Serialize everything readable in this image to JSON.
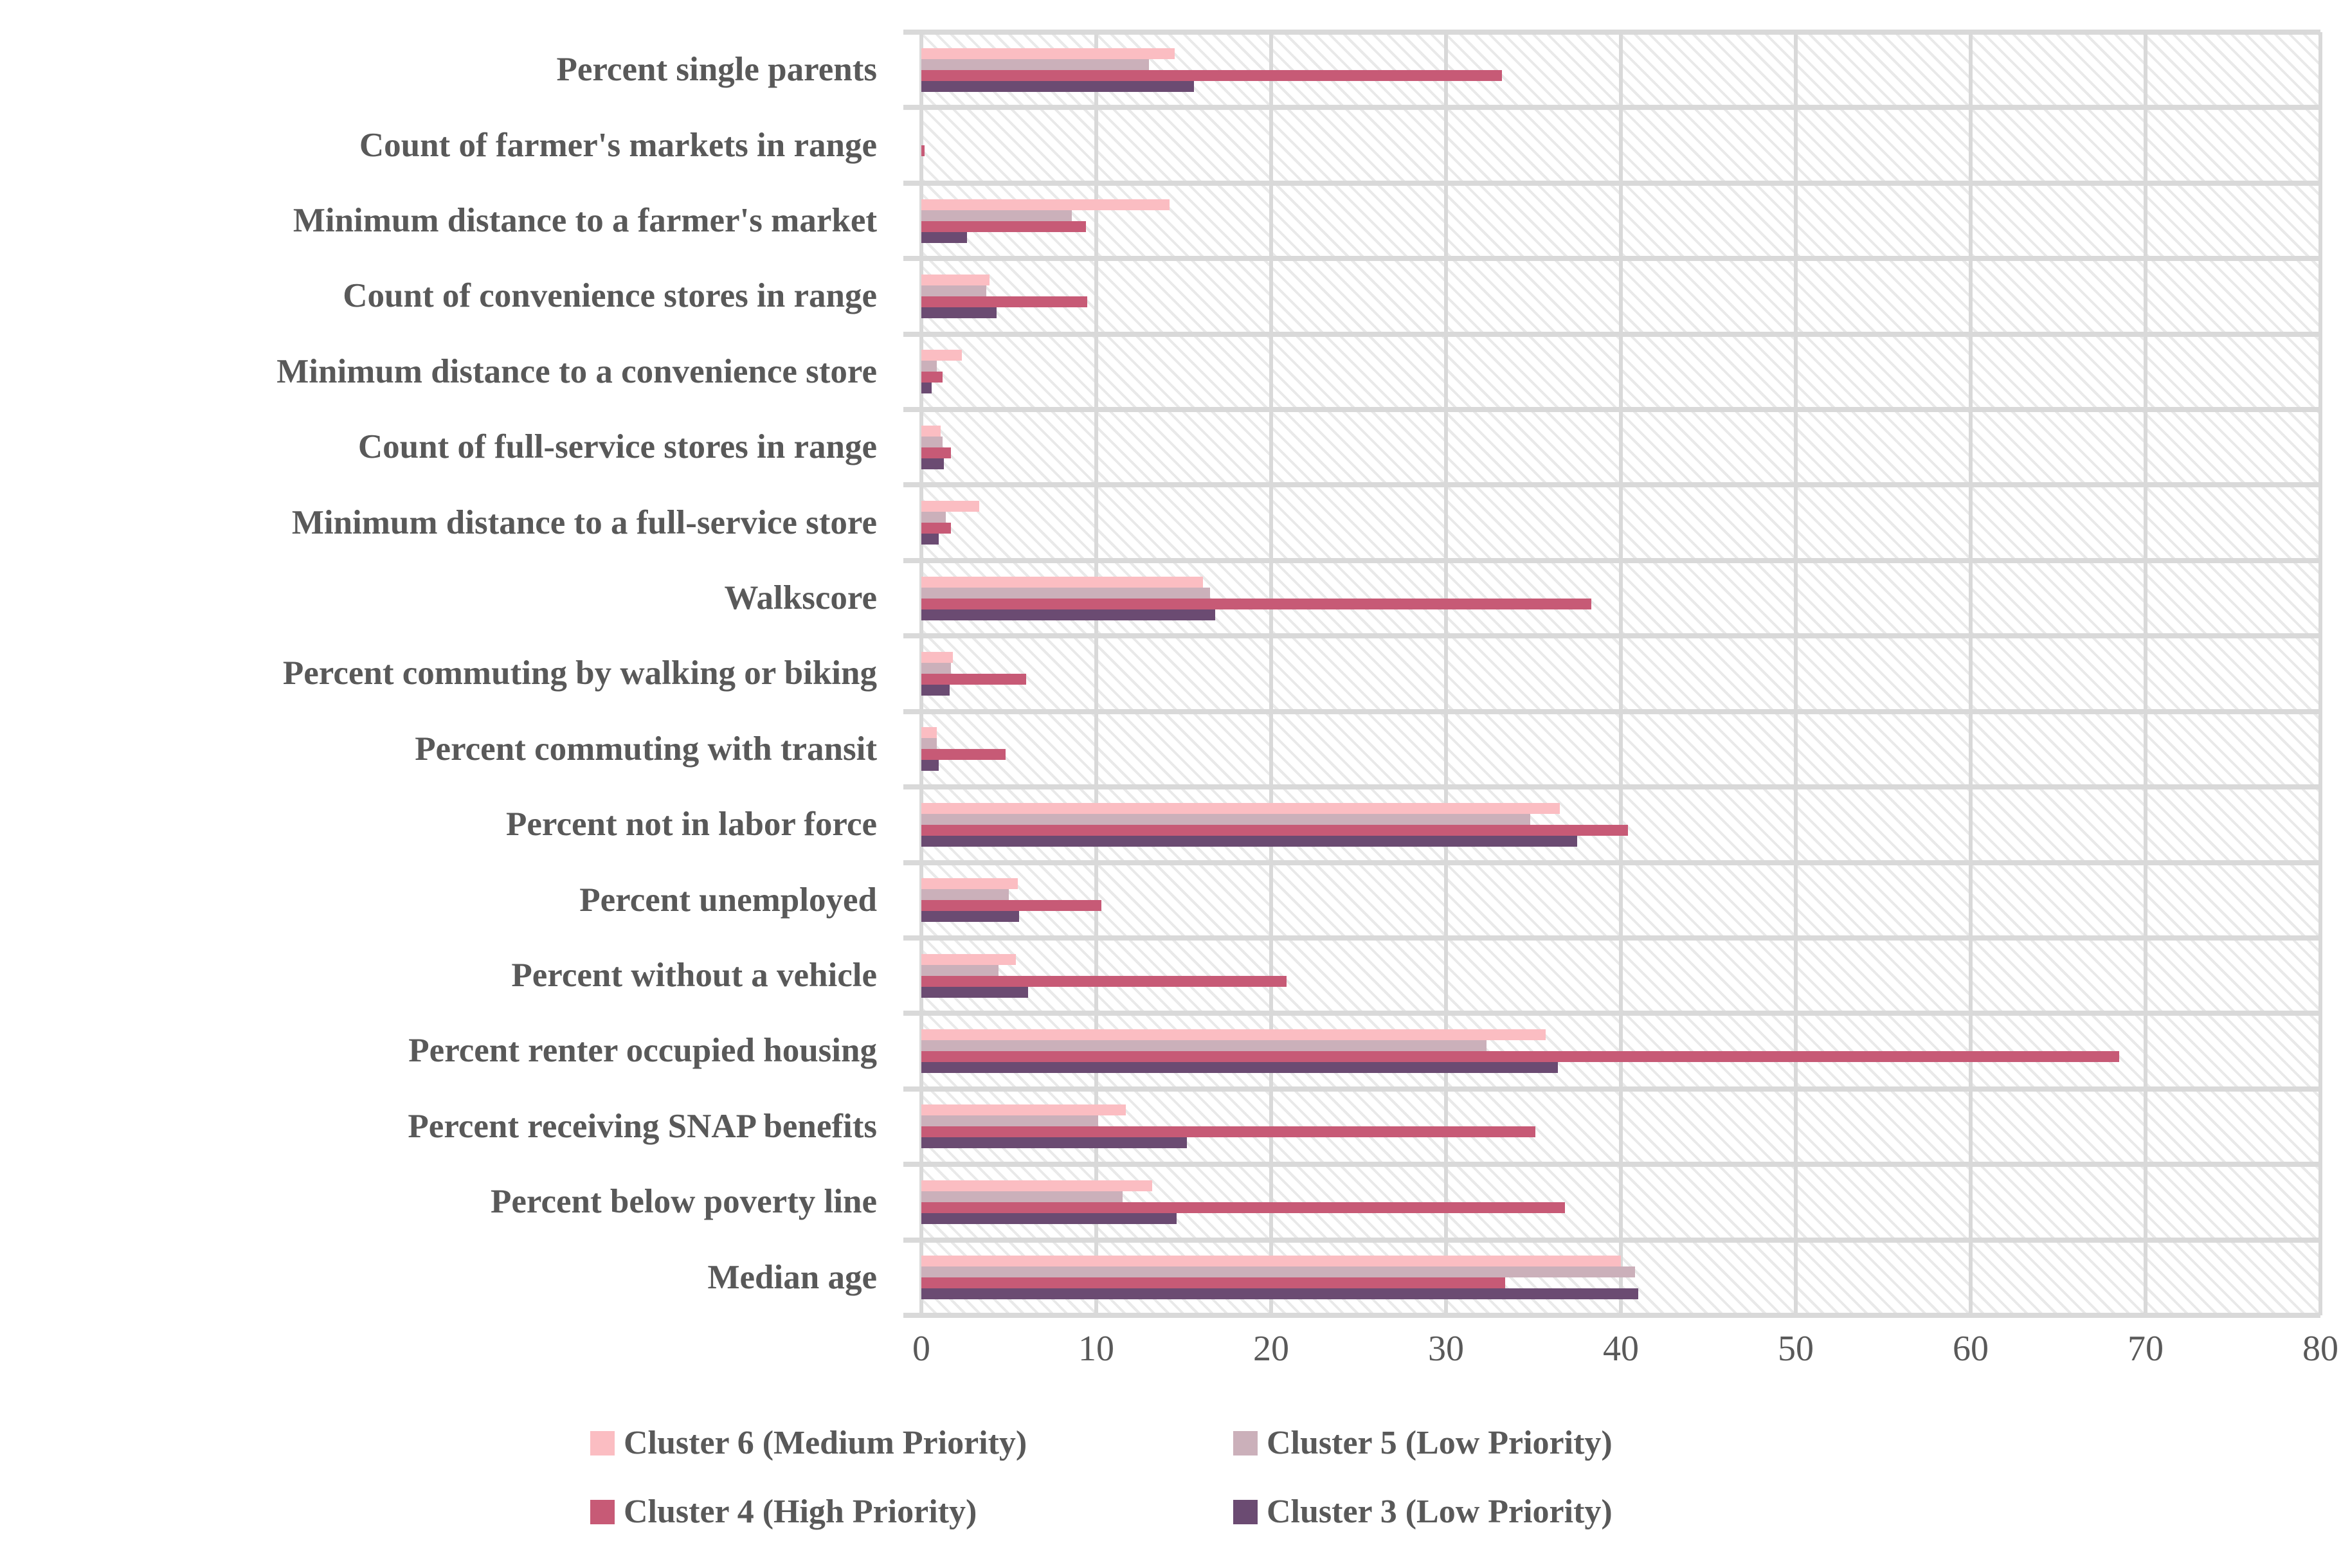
{
  "colors": {
    "text": "#595959",
    "gridline": "#D9D9D9",
    "background": "#FFFFFF",
    "cluster6": "#FBBDC2",
    "cluster5": "#CBB0BA",
    "cluster4": "#C75A76",
    "cluster3": "#6B4B72"
  },
  "chart_data": {
    "type": "bar",
    "orientation": "horizontal",
    "title": "",
    "xlabel": "",
    "ylabel": "",
    "xlim": [
      0,
      80
    ],
    "xticks": [
      0,
      10,
      20,
      30,
      40,
      50,
      60,
      70,
      80
    ],
    "grid": true,
    "background_pattern": "light diagonal hatch",
    "legend_position": "bottom",
    "categories": [
      "Percent single parents",
      "Count of farmer's markets in range",
      "Minimum distance to a farmer's market",
      "Count of convenience stores in range",
      "Minimum distance to a convenience store",
      "Count of full-service stores in range",
      "Minimum distance to a full-service store",
      "Walkscore",
      "Percent commuting by walking or biking",
      "Percent commuting with transit",
      "Percent not in labor force",
      "Percent unemployed",
      "Percent without a vehicle",
      "Percent renter occupied housing",
      "Percent receiving SNAP benefits",
      "Percent below poverty line",
      "Median age"
    ],
    "series": [
      {
        "name": "Cluster 6 (Medium Priority)",
        "color": "#FBBDC2",
        "values": [
          14.5,
          0,
          14.2,
          3.9,
          2.3,
          1.1,
          3.3,
          16.1,
          1.8,
          0.9,
          36.5,
          5.5,
          5.4,
          35.7,
          11.7,
          13.2,
          40.0
        ]
      },
      {
        "name": "Cluster 5 (Low Priority)",
        "color": "#CBB0BA",
        "values": [
          13.0,
          0,
          8.6,
          3.7,
          0.9,
          1.2,
          1.4,
          16.5,
          1.7,
          0.9,
          34.8,
          5.0,
          4.4,
          32.3,
          10.1,
          11.5,
          40.8
        ]
      },
      {
        "name": "Cluster 4 (High Priority)",
        "color": "#C75A76",
        "values": [
          33.2,
          0.2,
          9.4,
          9.5,
          1.2,
          1.7,
          1.7,
          38.3,
          6.0,
          4.8,
          40.4,
          10.3,
          20.9,
          68.5,
          35.1,
          36.8,
          33.4
        ]
      },
      {
        "name": "Cluster 3 (Low Priority)",
        "color": "#6B4B72",
        "values": [
          15.6,
          0,
          2.6,
          4.3,
          0.6,
          1.3,
          1.0,
          16.8,
          1.6,
          1.0,
          37.5,
          5.6,
          6.1,
          36.4,
          15.2,
          14.6,
          41.0
        ]
      }
    ],
    "legend_rows": [
      [
        "Cluster 6 (Medium Priority)",
        "Cluster 5 (Low Priority)"
      ],
      [
        "Cluster 4 (High Priority)",
        "Cluster 3 (Low Priority)"
      ]
    ]
  }
}
